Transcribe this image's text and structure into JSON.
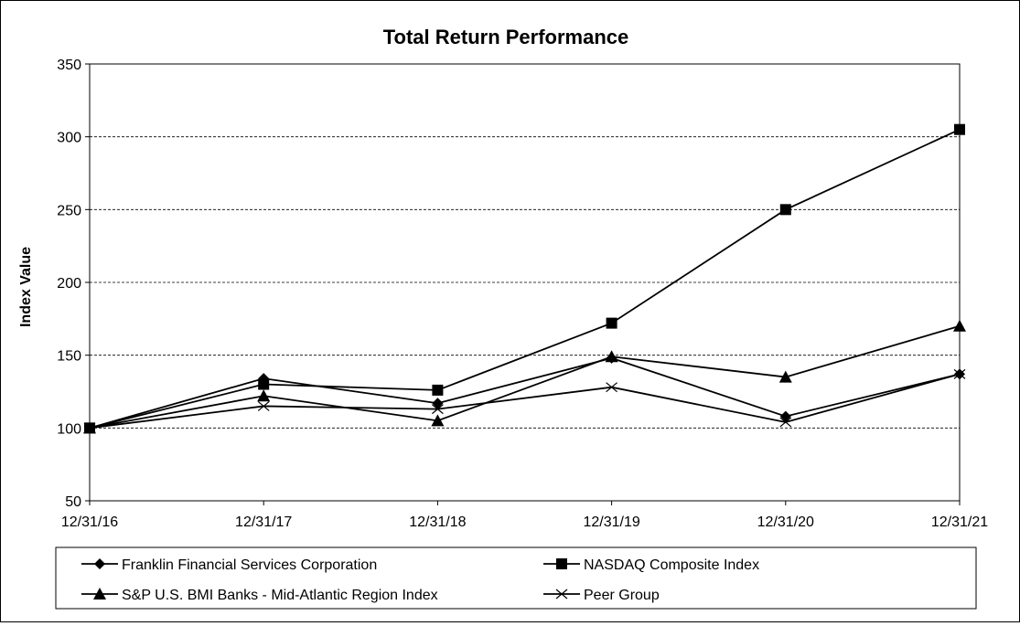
{
  "chart_data": {
    "type": "line",
    "title": "Total Return Performance",
    "xlabel": "",
    "ylabel": "Index Value",
    "categories": [
      "12/31/16",
      "12/31/17",
      "12/31/18",
      "12/31/19",
      "12/31/20",
      "12/31/21"
    ],
    "ylim": [
      50,
      350
    ],
    "yticks": [
      50,
      100,
      150,
      200,
      250,
      300,
      350
    ],
    "grid": true,
    "legend_position": "bottom",
    "series": [
      {
        "name": "Franklin Financial Services Corporation",
        "marker": "diamond",
        "values": [
          100,
          134,
          117,
          148,
          108,
          137
        ]
      },
      {
        "name": "NASDAQ Composite Index",
        "marker": "square",
        "values": [
          100,
          130,
          126,
          172,
          250,
          305
        ]
      },
      {
        "name": "S&P U.S. BMI Banks - Mid-Atlantic Region Index",
        "marker": "triangle",
        "values": [
          100,
          122,
          105,
          149,
          135,
          170
        ]
      },
      {
        "name": "Peer Group",
        "marker": "x",
        "values": [
          100,
          115,
          113,
          128,
          104,
          137
        ]
      }
    ]
  }
}
